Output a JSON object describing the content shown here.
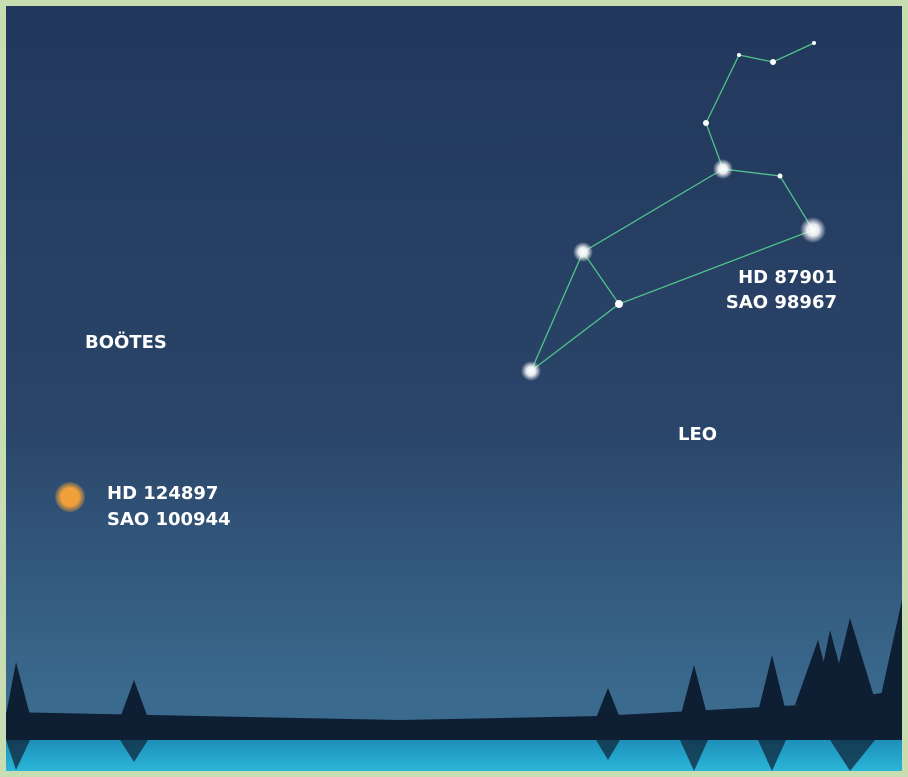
{
  "constellations": [
    "BOÖTES",
    "LEO"
  ],
  "stars": [
    {
      "hd": "HD 87901",
      "sao": "SAO 98967"
    },
    {
      "hd": "HD 124897",
      "sao": "SAO 100944"
    }
  ]
}
